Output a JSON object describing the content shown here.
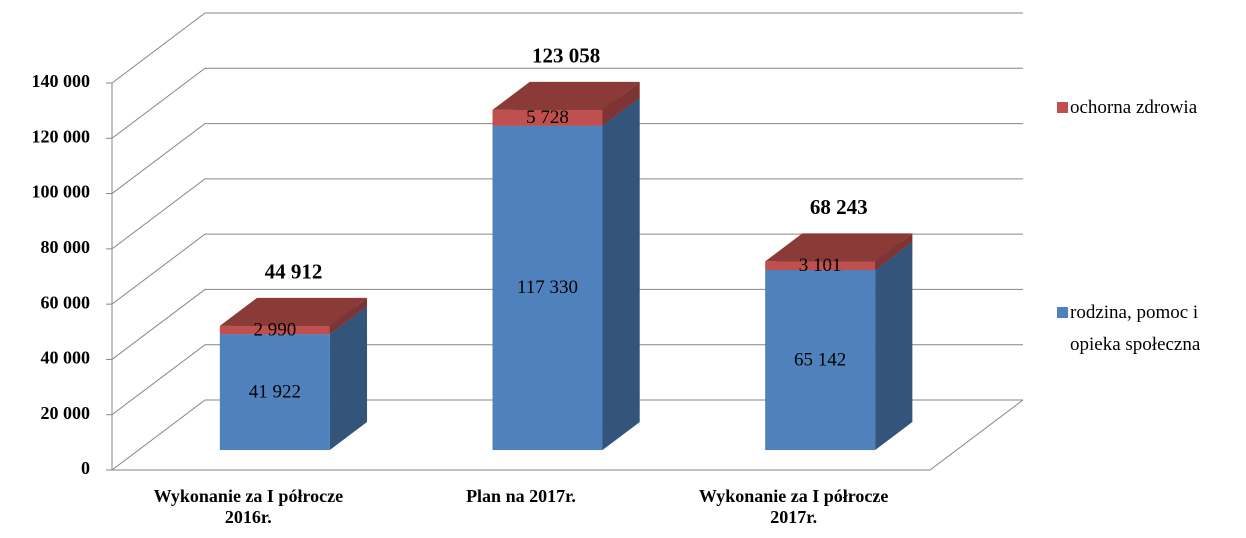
{
  "chart_data": {
    "type": "bar3d_stacked",
    "categories": [
      "Wykonanie za I półrocze 2016r.",
      "Plan na 2017r.",
      "Wykonanie za I półrocze 2017r."
    ],
    "series": [
      {
        "name": "rodzina, pomoc i opieka społeczna",
        "color": "#4f81bd",
        "values": [
          41922,
          117330,
          65142
        ],
        "value_labels": [
          "41 922",
          "117 330",
          "65 142"
        ]
      },
      {
        "name": "ochorna zdrowia",
        "color": "#c0504d",
        "values": [
          2990,
          5728,
          3101
        ],
        "value_labels": [
          "2 990",
          "5 728",
          "3 101"
        ]
      }
    ],
    "totals": [
      44912,
      123058,
      68243
    ],
    "totals_labels": [
      "44 912",
      "123 058",
      "68 243"
    ],
    "ylim": [
      0,
      140000
    ],
    "yticks": [
      0,
      {
        "value": 20000,
        "label": "20 000"
      },
      {
        "value": 40000,
        "label": "40 000"
      },
      {
        "value": 60000,
        "label": "60 000"
      },
      {
        "value": 80000,
        "label": "80 000"
      },
      {
        "value": 100000,
        "label": "100 000"
      },
      {
        "value": 120000,
        "label": "120 000"
      },
      {
        "value": 140000,
        "label": "140 000"
      }
    ],
    "grid": true
  }
}
